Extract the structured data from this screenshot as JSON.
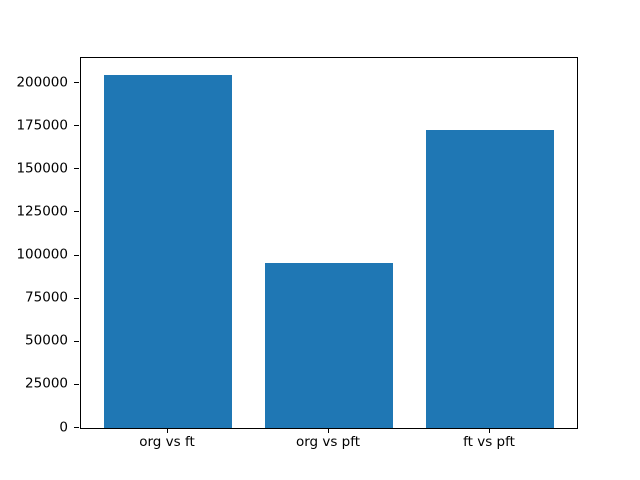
{
  "chart_data": {
    "type": "bar",
    "categories": [
      "org vs ft",
      "org vs pft",
      "ft vs pft"
    ],
    "values": [
      204900,
      95800,
      172500
    ],
    "title": "",
    "xlabel": "",
    "ylabel": "",
    "ylim": [
      0,
      214500
    ],
    "xlim": [
      -0.54,
      2.54
    ],
    "yticks": [
      0,
      25000,
      50000,
      75000,
      100000,
      125000,
      150000,
      175000,
      200000
    ],
    "bar_width_fraction": 0.8,
    "grid": false,
    "legend": false
  },
  "colors": {
    "bar": "#1f77b4",
    "background": "#ffffff",
    "spine": "#000000",
    "tick_text": "#000000"
  }
}
